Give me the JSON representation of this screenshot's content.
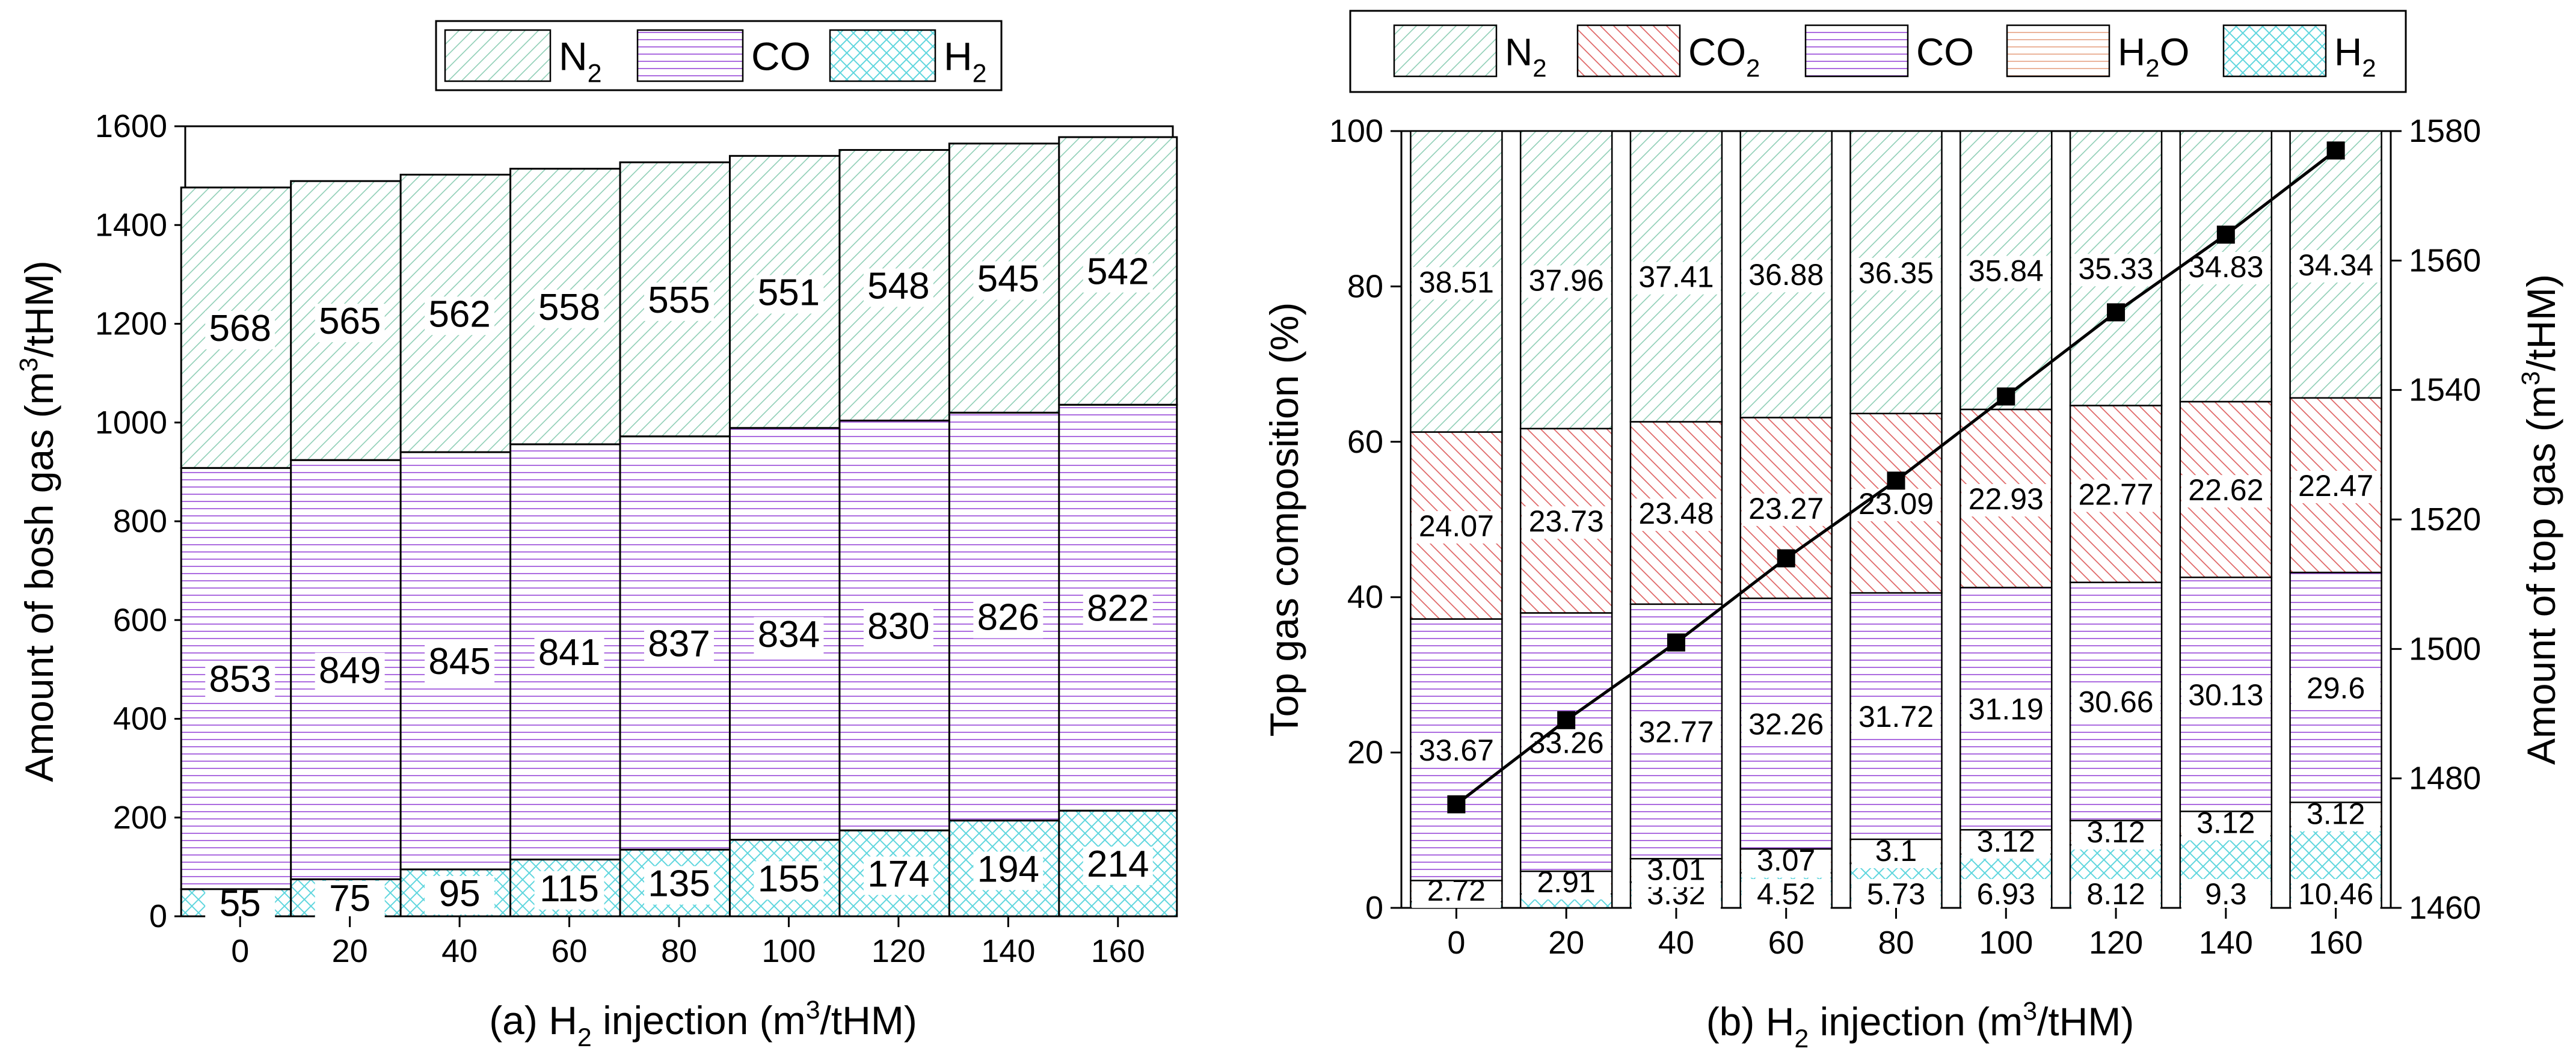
{
  "chart_data": [
    {
      "id": "panel-a",
      "type": "bar",
      "stacked": true,
      "title": "",
      "xlabel_parts": [
        "(a) H",
        "2",
        " injection (m",
        "3",
        "/tHM)"
      ],
      "ylabel_parts": [
        "Amount of bosh gas (m",
        "3",
        "/tHM)"
      ],
      "categories": [
        "0",
        "20",
        "40",
        "60",
        "80",
        "100",
        "120",
        "140",
        "160"
      ],
      "ylim": [
        0,
        1600
      ],
      "yticks": [
        "0",
        "200",
        "400",
        "600",
        "800",
        "1000",
        "1200",
        "1400",
        "1600"
      ],
      "series": [
        {
          "name": "H2",
          "legend_main": "H",
          "legend_sub": "2",
          "values": [
            55,
            75,
            95,
            115,
            135,
            155,
            174,
            194,
            214
          ],
          "labels": [
            "55",
            "75",
            "95",
            "115",
            "135",
            "155",
            "174",
            "194",
            "214"
          ]
        },
        {
          "name": "CO",
          "legend_main": "CO",
          "legend_sub": "",
          "values": [
            853,
            849,
            845,
            841,
            837,
            834,
            830,
            826,
            822
          ],
          "labels": [
            "853",
            "849",
            "845",
            "841",
            "837",
            "834",
            "830",
            "826",
            "822"
          ]
        },
        {
          "name": "N2",
          "legend_main": "N",
          "legend_sub": "2",
          "values": [
            568,
            565,
            562,
            558,
            555,
            551,
            548,
            545,
            542
          ],
          "labels": [
            "568",
            "565",
            "562",
            "558",
            "555",
            "551",
            "548",
            "545",
            "542"
          ]
        }
      ],
      "legend_order": [
        "N2",
        "CO",
        "H2"
      ],
      "legend_position": "top-center"
    },
    {
      "id": "panel-b",
      "type": "bar",
      "stacked": true,
      "title": "",
      "xlabel_parts": [
        "(b) H",
        "2",
        " injection (m",
        "3",
        "/tHM)"
      ],
      "ylabel": "Top gas composition (%)",
      "ylabel2_parts": [
        "Amount of top gas (m",
        "3",
        "/tHM)"
      ],
      "categories": [
        "0",
        "20",
        "40",
        "60",
        "80",
        "100",
        "120",
        "140",
        "160"
      ],
      "ylim": [
        0,
        100
      ],
      "yticks": [
        "0",
        "20",
        "40",
        "60",
        "80",
        "100"
      ],
      "y2lim": [
        1460,
        1580
      ],
      "y2ticks": [
        "1460",
        "1480",
        "1500",
        "1520",
        "1540",
        "1560",
        "1580"
      ],
      "series": [
        {
          "name": "H2",
          "legend_main": "H",
          "legend_sub": "2",
          "values": [
            0.8,
            1.8,
            3.32,
            4.52,
            5.73,
            6.93,
            8.12,
            9.3,
            10.46
          ],
          "labels": [
            "",
            "",
            "3.32",
            "4.52",
            "5.73",
            "6.93",
            "8.12",
            "9.3",
            "10.46"
          ]
        },
        {
          "name": "H2O",
          "legend_main": "H",
          "legend_sub": "2",
          "legend_tail": "O",
          "values": [
            2.72,
            2.91,
            3.01,
            3.07,
            3.1,
            3.12,
            3.12,
            3.12,
            3.12
          ],
          "labels": [
            "2.72",
            "2.91",
            "3.01",
            "3.07",
            "3.1",
            "3.12",
            "3.12",
            "3.12",
            "3.12"
          ]
        },
        {
          "name": "CO",
          "legend_main": "CO",
          "legend_sub": "",
          "values": [
            33.67,
            33.26,
            32.77,
            32.26,
            31.72,
            31.19,
            30.66,
            30.13,
            29.6
          ],
          "labels": [
            "33.67",
            "33.26",
            "32.77",
            "32.26",
            "31.72",
            "31.19",
            "30.66",
            "30.13",
            "29.6"
          ]
        },
        {
          "name": "CO2",
          "legend_main": "CO",
          "legend_sub": "2",
          "values": [
            24.07,
            23.73,
            23.48,
            23.27,
            23.09,
            22.93,
            22.77,
            22.62,
            22.47
          ],
          "labels": [
            "24.07",
            "23.73",
            "23.48",
            "23.27",
            "23.09",
            "22.93",
            "22.77",
            "22.62",
            "22.47"
          ]
        },
        {
          "name": "N2",
          "legend_main": "N",
          "legend_sub": "2",
          "values": [
            38.51,
            37.96,
            37.41,
            36.88,
            36.35,
            35.84,
            35.33,
            34.83,
            34.34
          ],
          "labels": [
            "38.51",
            "37.96",
            "37.41",
            "36.88",
            "36.35",
            "35.84",
            "35.33",
            "34.83",
            "34.34"
          ]
        }
      ],
      "legend_order": [
        "N2",
        "CO2",
        "CO",
        "H2O",
        "H2"
      ],
      "legend_position": "top-center",
      "line_series": {
        "name": "Amount of top gas",
        "axis": "right",
        "marker": "square",
        "values": [
          1476,
          1489,
          1501,
          1514,
          1526,
          1539,
          1552,
          1564,
          1577
        ]
      }
    }
  ],
  "colors": {
    "N2": "#8fcfb6",
    "CO2": "#e06a6a",
    "CO": "#a35bdc",
    "H2O": "#e9ab90",
    "H2": "#5fd6de",
    "line": "#000000"
  }
}
